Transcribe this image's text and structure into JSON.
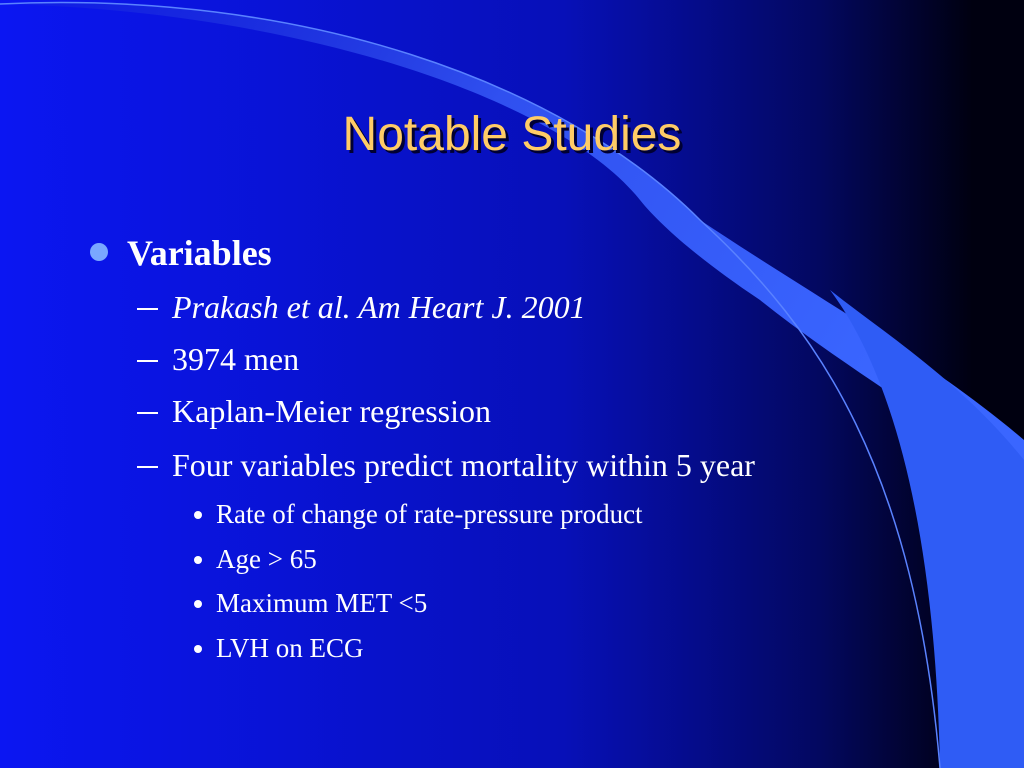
{
  "slide": {
    "title": "Notable Studies",
    "bullets": [
      {
        "text": "Variables",
        "items": [
          {
            "text": "Prakash et al. Am Heart J. 2001"
          },
          {
            "text": "3974 men"
          },
          {
            "text": "Kaplan-Meier regression"
          },
          {
            "text": "Four variables predict mortality within 5 year",
            "items": [
              "Rate of change of rate-pressure product",
              "Age > 65",
              "Maximum MET <5",
              "LVH on ECG"
            ]
          }
        ]
      }
    ]
  }
}
